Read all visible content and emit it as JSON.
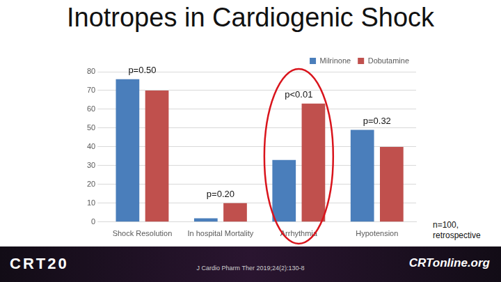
{
  "chart_data": {
    "type": "bar",
    "title": "Inotropes in Cardiogenic Shock",
    "categories": [
      "Shock Resolution",
      "In hospital Mortality",
      "Arrhythmia",
      "Hypotension"
    ],
    "series": [
      {
        "name": "Milrinone",
        "color": "#4a7ebb",
        "values": [
          76,
          2,
          33,
          49
        ]
      },
      {
        "name": "Dobutamine",
        "color": "#c0504d",
        "values": [
          70,
          10,
          63,
          40
        ]
      }
    ],
    "ylim": [
      0,
      80
    ],
    "yticks": [
      0,
      10,
      20,
      30,
      40,
      50,
      60,
      70,
      80
    ],
    "grid": true,
    "legend": "top right",
    "annotations": [
      "p=0.50",
      "p=0.20",
      "p<0.01",
      "p=0.32"
    ],
    "note": "n=100, retrospective",
    "source": "J Cardio Pharm Ther 2019;24(2):130-8",
    "logos": [
      "CRT20",
      "CRTonline.org"
    ]
  }
}
